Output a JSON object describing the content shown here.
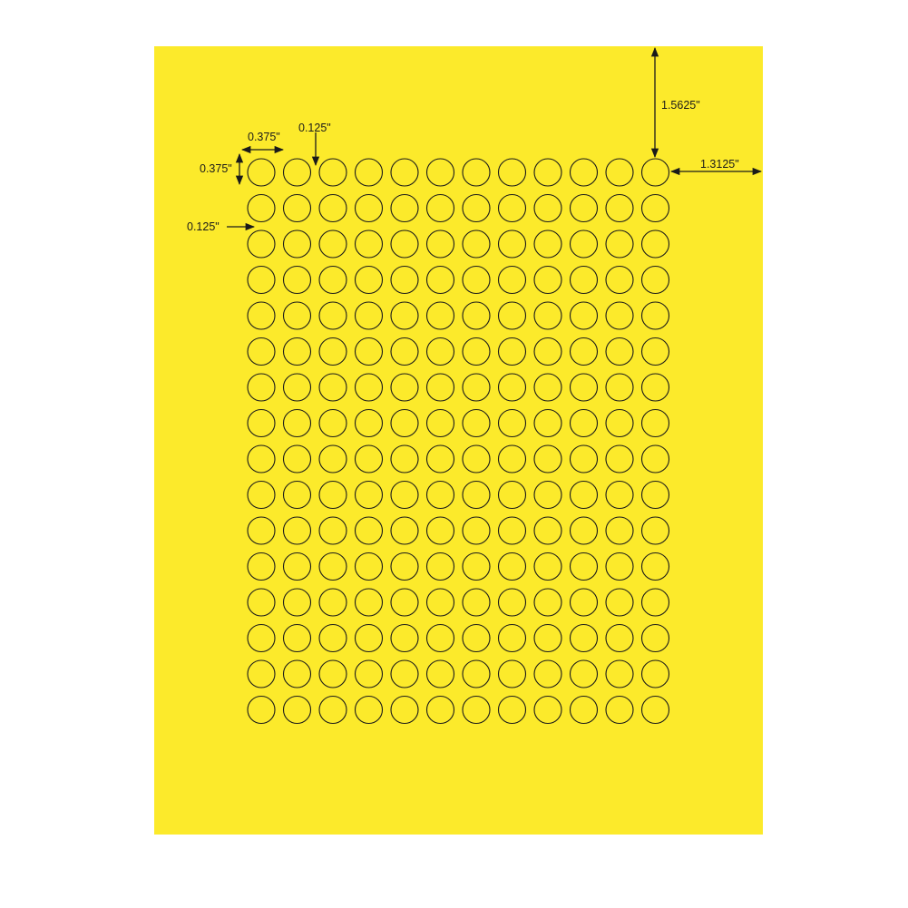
{
  "sheet": {
    "color": "#fcea2b",
    "label_outline_color": "#1a1a1a",
    "grid": {
      "rows": 16,
      "columns": 12
    },
    "label_shape": "circle"
  },
  "dimensions": {
    "label_width": "0.375\"",
    "label_height": "0.375\"",
    "horizontal_gap": "0.125\"",
    "vertical_gap": "0.125\"",
    "top_margin": "1.5625\"",
    "right_margin": "1.3125\""
  }
}
